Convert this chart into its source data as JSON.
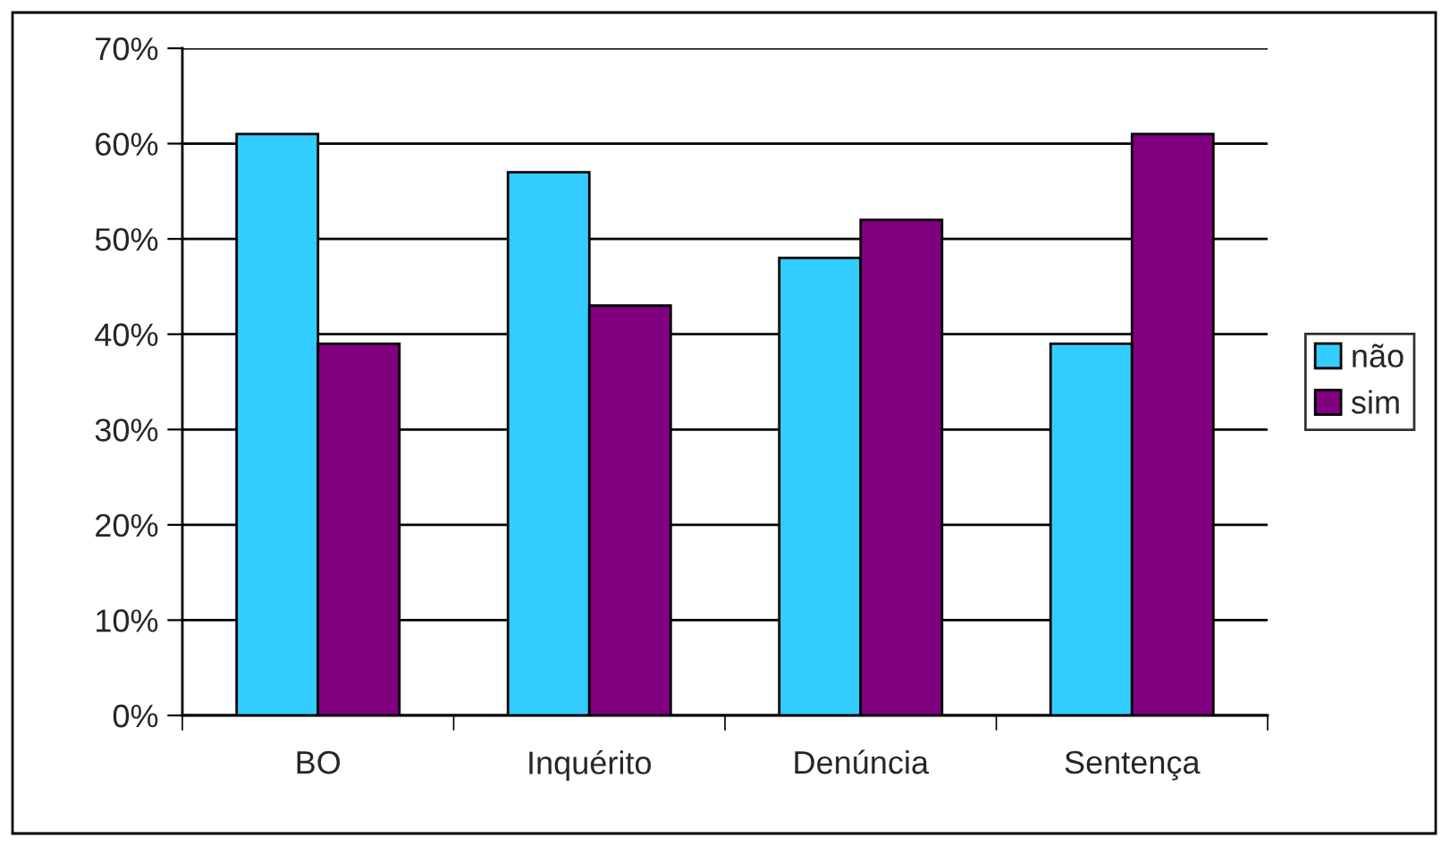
{
  "chart_data": {
    "type": "bar",
    "categories": [
      "BO",
      "Inquérito",
      "Denúncia",
      "Sentença"
    ],
    "series": [
      {
        "name": "não",
        "color": "#33ccff",
        "values": [
          61,
          57,
          48,
          39
        ]
      },
      {
        "name": "sim",
        "color": "#800080",
        "values": [
          39,
          43,
          52,
          61
        ]
      }
    ],
    "ylim": [
      0,
      70
    ],
    "yticks": [
      {
        "value": 0,
        "label": "0%"
      },
      {
        "value": 10,
        "label": "10%"
      },
      {
        "value": 20,
        "label": "20%"
      },
      {
        "value": 30,
        "label": "30%"
      },
      {
        "value": 40,
        "label": "40%"
      },
      {
        "value": 50,
        "label": "50%"
      },
      {
        "value": 60,
        "label": "60%"
      },
      {
        "value": 70,
        "label": "70%"
      }
    ],
    "grid": "y",
    "legend": "right"
  }
}
